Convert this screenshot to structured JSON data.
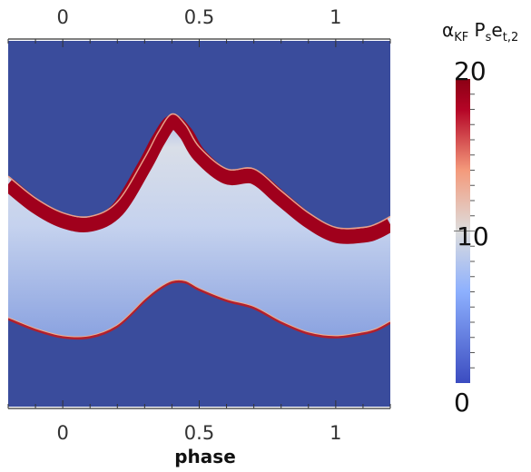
{
  "chart_data": {
    "type": "heatmap",
    "xlabel": "phase",
    "xlim": [
      -0.2,
      1.2
    ],
    "x_ticks": [
      0,
      0.5,
      1
    ],
    "x_tick_labels": [
      "0",
      "0.5",
      "1"
    ],
    "colorbar": {
      "title": "α",
      "title_sub_kf": "KF",
      "title_p": " P",
      "title_sub_s": "s",
      "title_e": "e",
      "title_sub_t2": "t,2",
      "min": 0,
      "max": 20,
      "ticks": [
        0,
        10,
        20
      ],
      "tick_labels": [
        "0",
        "10",
        "20"
      ],
      "colormap": "cool-to-warm",
      "colors": [
        "#3b4cc0",
        "#8db0fe",
        "#dddddd",
        "#f49a7b",
        "#b40426",
        "#8b0014"
      ]
    },
    "background_value": 1,
    "band_upper_edge": {
      "phase": [
        -0.2,
        -0.1,
        0.0,
        0.1,
        0.2,
        0.3,
        0.35,
        0.4,
        0.45,
        0.5,
        0.6,
        0.7,
        0.8,
        0.9,
        1.0,
        1.1,
        1.15,
        1.2
      ],
      "rel_y": [
        0.37,
        0.43,
        0.47,
        0.48,
        0.44,
        0.32,
        0.25,
        0.2,
        0.23,
        0.29,
        0.35,
        0.35,
        0.41,
        0.47,
        0.51,
        0.51,
        0.5,
        0.48
      ]
    },
    "band_lower_edge": {
      "phase": [
        -0.2,
        -0.1,
        0.0,
        0.1,
        0.2,
        0.3,
        0.35,
        0.4,
        0.45,
        0.5,
        0.6,
        0.7,
        0.8,
        0.9,
        1.0,
        1.1,
        1.15,
        1.2
      ],
      "rel_y": [
        0.76,
        0.79,
        0.81,
        0.81,
        0.78,
        0.71,
        0.68,
        0.66,
        0.66,
        0.68,
        0.71,
        0.73,
        0.77,
        0.8,
        0.81,
        0.8,
        0.79,
        0.77
      ]
    }
  }
}
